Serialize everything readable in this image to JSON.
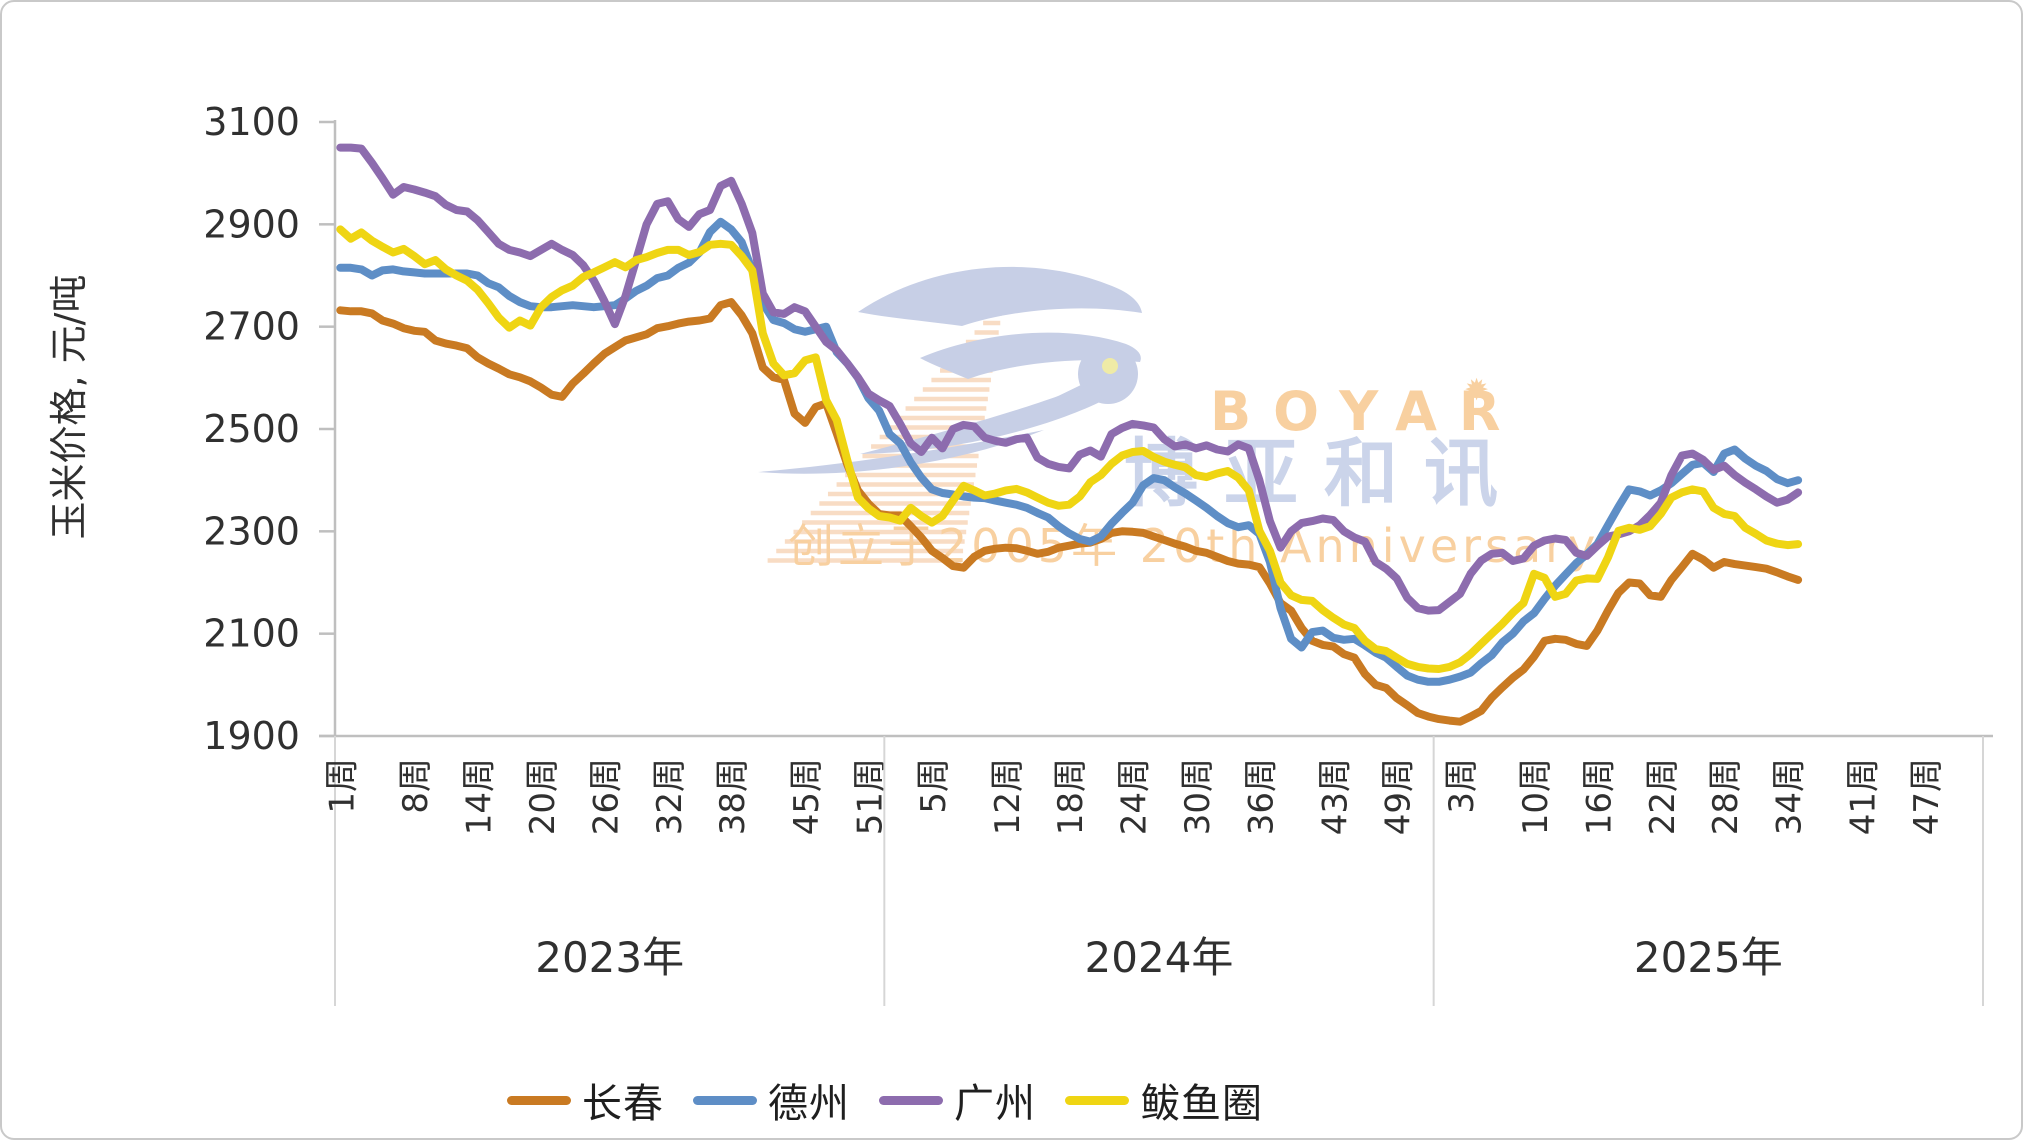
{
  "chart_data": {
    "type": "line",
    "title": "",
    "ylabel": "玉米价格, 元/吨",
    "ylim": [
      1900,
      3100
    ],
    "y_ticks": [
      3100,
      2900,
      2700,
      2500,
      2300,
      2100,
      1900
    ],
    "grid": false,
    "legend_position": "bottom",
    "x_groups": [
      {
        "label": "2023年",
        "weeks": 52,
        "tick_weeks": [
          1,
          8,
          14,
          20,
          26,
          32,
          38,
          45,
          51
        ]
      },
      {
        "label": "2024年",
        "weeks": 52,
        "tick_weeks": [
          5,
          12,
          18,
          24,
          30,
          36,
          43,
          49
        ]
      },
      {
        "label": "2025年",
        "weeks": 52,
        "tick_weeks": [
          3,
          10,
          16,
          22,
          28,
          34,
          41,
          47
        ]
      }
    ],
    "week_label_suffix": "周",
    "points_per_year": [
      52,
      52,
      35
    ],
    "series": [
      {
        "name": "长春",
        "color": "#C97A22",
        "values": [
          2732,
          2730,
          2730,
          2726,
          2712,
          2706,
          2697,
          2692,
          2690,
          2673,
          2667,
          2663,
          2658,
          2640,
          2628,
          2618,
          2607,
          2601,
          2593,
          2581,
          2567,
          2563,
          2589,
          2608,
          2628,
          2647,
          2660,
          2673,
          2679,
          2685,
          2697,
          2701,
          2706,
          2710,
          2712,
          2716,
          2742,
          2748,
          2722,
          2687,
          2620,
          2601,
          2596,
          2530,
          2512,
          2543,
          2550,
          2491,
          2430,
          2380,
          2354,
          2334,
          2331,
          2331,
          2310,
          2288,
          2262,
          2248,
          2232,
          2229,
          2250,
          2262,
          2266,
          2268,
          2267,
          2262,
          2256,
          2260,
          2268,
          2272,
          2276,
          2278,
          2285,
          2297,
          2300,
          2299,
          2297,
          2290,
          2283,
          2276,
          2270,
          2262,
          2258,
          2250,
          2242,
          2237,
          2235,
          2230,
          2198,
          2160,
          2145,
          2111,
          2086,
          2078,
          2075,
          2060,
          2053,
          2021,
          2000,
          1994,
          1974,
          1960,
          1945,
          1938,
          1933,
          1930,
          1928,
          1938,
          1949,
          1975,
          1995,
          2014,
          2030,
          2055,
          2086,
          2090,
          2088,
          2080,
          2076,
          2106,
          2145,
          2180,
          2200,
          2198,
          2175,
          2172,
          2205,
          2230,
          2256,
          2245,
          2229,
          2240,
          2236,
          2233,
          2230,
          2227,
          2220,
          2212,
          2205
        ]
      },
      {
        "name": "德州",
        "color": "#5E8EC6",
        "values": [
          2815,
          2815,
          2812,
          2800,
          2810,
          2812,
          2808,
          2806,
          2804,
          2804,
          2804,
          2804,
          2804,
          2800,
          2785,
          2777,
          2760,
          2748,
          2740,
          2738,
          2738,
          2740,
          2742,
          2740,
          2738,
          2740,
          2742,
          2755,
          2770,
          2780,
          2795,
          2800,
          2815,
          2825,
          2845,
          2885,
          2905,
          2890,
          2865,
          2810,
          2746,
          2713,
          2707,
          2695,
          2690,
          2695,
          2700,
          2650,
          2628,
          2600,
          2560,
          2536,
          2490,
          2472,
          2435,
          2405,
          2382,
          2375,
          2372,
          2368,
          2366,
          2365,
          2360,
          2356,
          2352,
          2346,
          2336,
          2327,
          2310,
          2296,
          2285,
          2280,
          2290,
          2315,
          2336,
          2356,
          2390,
          2404,
          2400,
          2386,
          2374,
          2360,
          2346,
          2330,
          2316,
          2308,
          2312,
          2295,
          2240,
          2150,
          2090,
          2073,
          2103,
          2106,
          2092,
          2088,
          2090,
          2077,
          2063,
          2053,
          2035,
          2018,
          2010,
          2006,
          2006,
          2010,
          2016,
          2024,
          2042,
          2058,
          2083,
          2100,
          2124,
          2140,
          2168,
          2194,
          2216,
          2238,
          2255,
          2275,
          2312,
          2348,
          2382,
          2378,
          2370,
          2380,
          2394,
          2412,
          2430,
          2434,
          2416,
          2452,
          2460,
          2442,
          2428,
          2418,
          2402,
          2394,
          2400
        ]
      },
      {
        "name": "广州",
        "color": "#8D6CAE",
        "values": [
          3050,
          3050,
          3048,
          3020,
          2990,
          2958,
          2973,
          2968,
          2962,
          2955,
          2938,
          2928,
          2925,
          2908,
          2885,
          2862,
          2850,
          2845,
          2838,
          2850,
          2862,
          2850,
          2840,
          2820,
          2790,
          2750,
          2705,
          2760,
          2830,
          2900,
          2940,
          2945,
          2910,
          2895,
          2920,
          2928,
          2975,
          2985,
          2940,
          2883,
          2765,
          2728,
          2725,
          2738,
          2730,
          2700,
          2670,
          2654,
          2628,
          2601,
          2569,
          2556,
          2545,
          2510,
          2472,
          2455,
          2483,
          2462,
          2500,
          2508,
          2505,
          2483,
          2477,
          2473,
          2480,
          2483,
          2444,
          2432,
          2426,
          2423,
          2450,
          2458,
          2446,
          2490,
          2502,
          2510,
          2507,
          2503,
          2480,
          2466,
          2470,
          2462,
          2468,
          2460,
          2456,
          2470,
          2462,
          2400,
          2320,
          2268,
          2300,
          2316,
          2320,
          2325,
          2322,
          2300,
          2288,
          2280,
          2240,
          2227,
          2208,
          2170,
          2150,
          2145,
          2146,
          2162,
          2178,
          2217,
          2243,
          2256,
          2258,
          2242,
          2247,
          2272,
          2282,
          2286,
          2283,
          2258,
          2252,
          2272,
          2290,
          2294,
          2300,
          2312,
          2332,
          2356,
          2410,
          2448,
          2452,
          2440,
          2420,
          2428,
          2410,
          2395,
          2382,
          2368,
          2356,
          2362,
          2376
        ]
      },
      {
        "name": "鲅鱼圈",
        "color": "#EFD513",
        "values": [
          2890,
          2872,
          2884,
          2868,
          2856,
          2845,
          2852,
          2838,
          2822,
          2830,
          2812,
          2800,
          2790,
          2772,
          2746,
          2718,
          2698,
          2712,
          2702,
          2738,
          2758,
          2771,
          2780,
          2797,
          2806,
          2816,
          2826,
          2816,
          2830,
          2836,
          2844,
          2850,
          2850,
          2840,
          2846,
          2860,
          2862,
          2860,
          2838,
          2810,
          2687,
          2628,
          2605,
          2609,
          2634,
          2640,
          2556,
          2517,
          2438,
          2366,
          2345,
          2330,
          2327,
          2321,
          2346,
          2330,
          2317,
          2330,
          2360,
          2389,
          2380,
          2370,
          2374,
          2380,
          2383,
          2376,
          2366,
          2356,
          2350,
          2352,
          2368,
          2396,
          2410,
          2432,
          2448,
          2455,
          2457,
          2445,
          2436,
          2430,
          2425,
          2410,
          2406,
          2413,
          2418,
          2405,
          2380,
          2301,
          2262,
          2200,
          2175,
          2166,
          2164,
          2146,
          2131,
          2118,
          2111,
          2086,
          2070,
          2066,
          2053,
          2041,
          2035,
          2032,
          2031,
          2035,
          2044,
          2060,
          2080,
          2100,
          2119,
          2141,
          2160,
          2217,
          2209,
          2172,
          2178,
          2204,
          2208,
          2207,
          2249,
          2301,
          2307,
          2303,
          2310,
          2334,
          2366,
          2376,
          2382,
          2378,
          2346,
          2334,
          2330,
          2307,
          2295,
          2282,
          2276,
          2273,
          2275
        ]
      }
    ]
  },
  "watermark": {
    "brand": "BOYAR",
    "brand_cn": "博亚和讯",
    "tagline": "创立于2005年 20th Anniversary",
    "bird_color": "#C7CFE6",
    "eye_color": "#EFEBA6",
    "peach_color": "#F8D0A0",
    "blue_text_color": "#CBD4EA",
    "stripe_color": "#F8DCC4"
  },
  "axis_style": {
    "line_color": "#BFBFBF",
    "separator_color": "#D6D6D6",
    "label_color": "#303030"
  }
}
